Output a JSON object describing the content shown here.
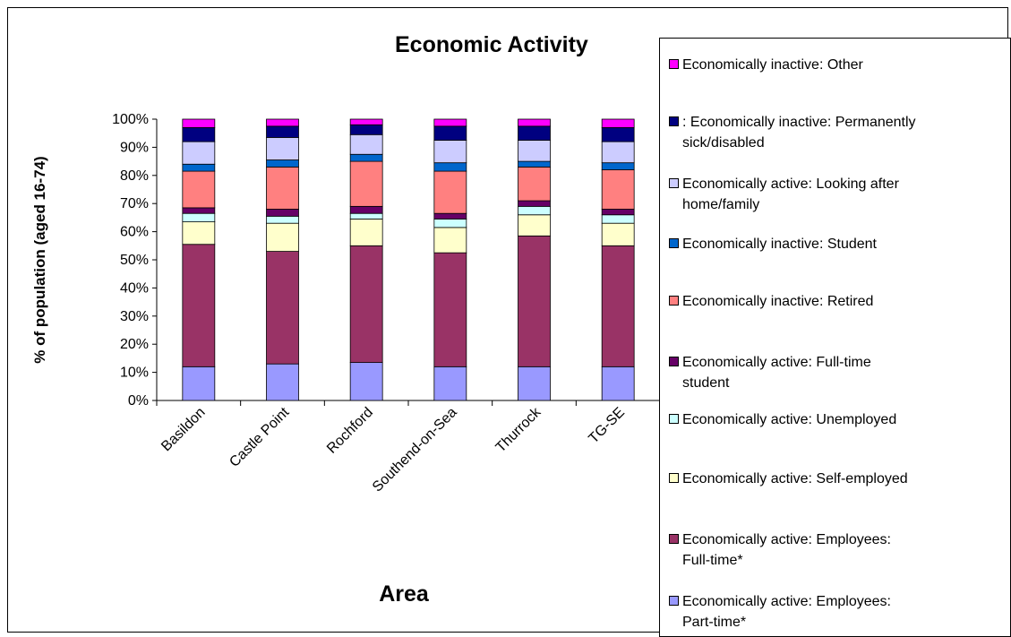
{
  "chart_data": {
    "type": "bar",
    "stacked": true,
    "title": "Economic Activity",
    "xlabel": "Area",
    "ylabel": "% of population (aged 16-74)",
    "ylim": [
      0,
      100
    ],
    "y_ticks": [
      "0%",
      "10%",
      "20%",
      "30%",
      "40%",
      "50%",
      "60%",
      "70%",
      "80%",
      "90%",
      "100%"
    ],
    "grid": false,
    "legend_position": "right",
    "categories": [
      "Basildon",
      "Castle Point",
      "Rochford",
      "Southend-on-Sea",
      "Thurrock",
      "TG-SE"
    ],
    "series": [
      {
        "name": "Economically active: Employees: Part-time*",
        "color": "#9999ff",
        "values": [
          12.0,
          13.0,
          13.5,
          12.0,
          12.0,
          12.0
        ]
      },
      {
        "name": "Economically active: Employees: Full-time*",
        "color": "#993366",
        "values": [
          43.5,
          40.0,
          41.5,
          40.5,
          46.5,
          43.0
        ]
      },
      {
        "name": "Economically active: Self-employed",
        "color": "#ffffcc",
        "values": [
          8.0,
          10.0,
          9.5,
          9.0,
          7.5,
          8.0
        ]
      },
      {
        "name": "Economically active: Unemployed",
        "color": "#ccffff",
        "values": [
          3.0,
          2.5,
          2.0,
          3.0,
          3.0,
          3.0
        ]
      },
      {
        "name": "Economically active: Full-time student",
        "color": "#660066",
        "values": [
          2.0,
          2.5,
          2.5,
          2.0,
          2.0,
          2.0
        ]
      },
      {
        "name": "Economically inactive: Retired",
        "color": "#ff8080",
        "values": [
          13.0,
          15.0,
          16.0,
          15.0,
          12.0,
          14.0
        ]
      },
      {
        "name": "Economically inactive: Student",
        "color": "#0066cc",
        "values": [
          2.5,
          2.5,
          2.5,
          3.0,
          2.0,
          2.5
        ]
      },
      {
        "name": "Economically active: Looking after home/family",
        "color": "#ccccff",
        "values": [
          8.0,
          8.0,
          7.0,
          8.0,
          7.5,
          7.5
        ]
      },
      {
        "name": ": Economically inactive: Permanently sick/disabled",
        "color": "#000080",
        "values": [
          5.0,
          4.0,
          3.5,
          5.0,
          5.0,
          5.0
        ]
      },
      {
        "name": "Economically inactive: Other",
        "color": "#ff00ff",
        "values": [
          3.0,
          2.5,
          2.0,
          2.5,
          2.5,
          3.0
        ]
      }
    ],
    "legend_order": [
      9,
      8,
      7,
      6,
      5,
      4,
      3,
      2,
      1,
      0
    ],
    "legend_lines": [
      [
        "Economically inactive: Other"
      ],
      [
        ": Economically inactive: Permanently",
        "sick/disabled"
      ],
      [
        " Economically active: Looking after",
        "home/family"
      ],
      [
        "Economically inactive: Student"
      ],
      [
        " Economically inactive: Retired"
      ],
      [
        "Economically active: Full-time",
        "student"
      ],
      [
        " Economically active: Unemployed"
      ],
      [
        "Economically active: Self-employed"
      ],
      [
        "Economically active: Employees:",
        "Full-time*"
      ],
      [
        " Economically active: Employees:",
        "Part-time*"
      ]
    ]
  }
}
